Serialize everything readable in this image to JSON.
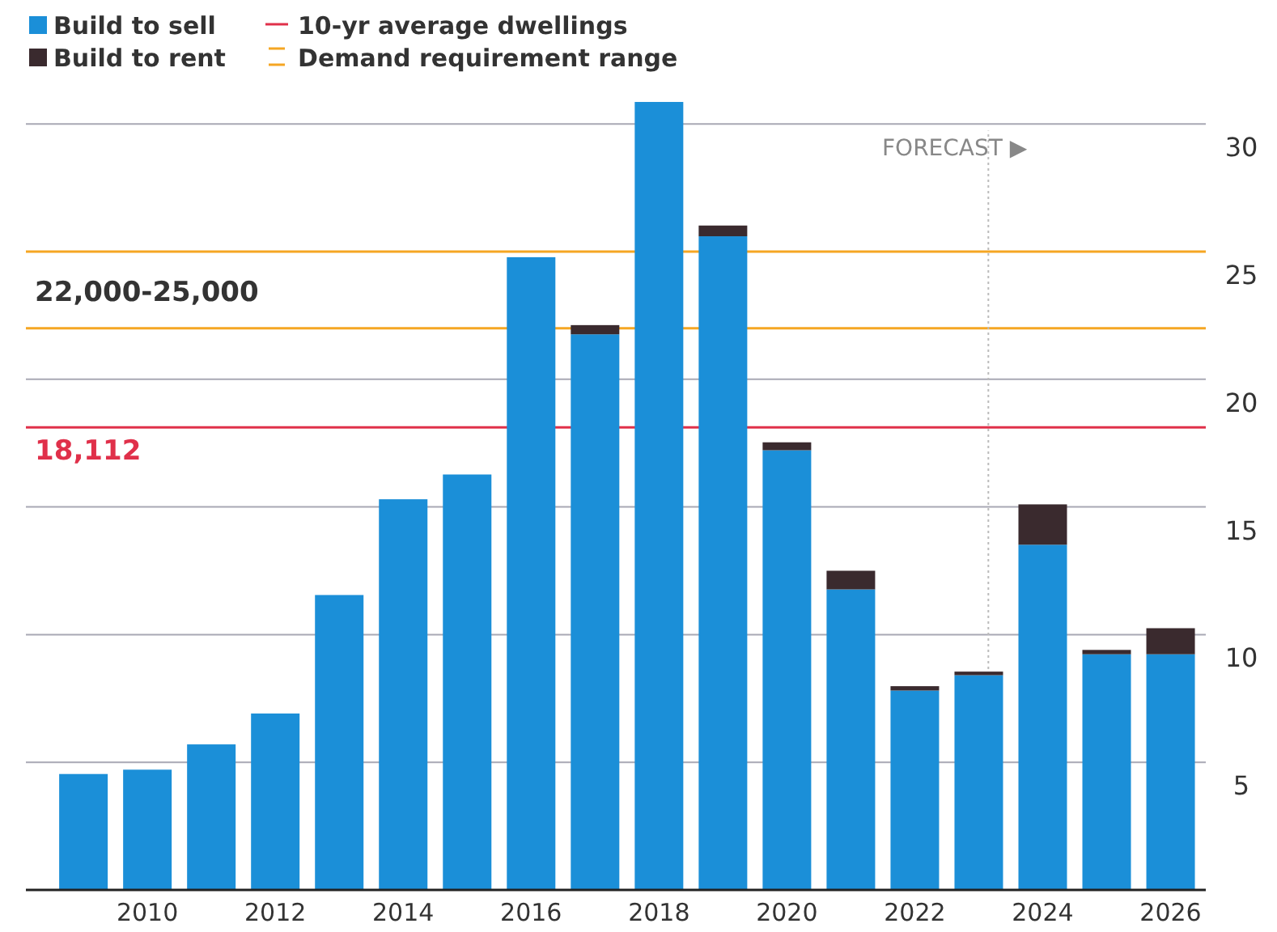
{
  "chart_data": {
    "type": "bar",
    "stacked": true,
    "x": [
      2009,
      2010,
      2011,
      2012,
      2013,
      2014,
      2015,
      2016,
      2017,
      2018,
      2019,
      2020,
      2021,
      2022,
      2023,
      2024,
      2025,
      2026
    ],
    "series": [
      {
        "name": "Build to sell",
        "color": "#1b8fd8",
        "values": [
          4.54,
          4.71,
          5.7,
          6.91,
          11.55,
          15.3,
          16.27,
          24.78,
          21.76,
          30.86,
          25.6,
          17.22,
          11.77,
          7.81,
          8.41,
          13.52,
          9.23,
          9.23
        ]
      },
      {
        "name": "Build to rent",
        "color": "#3a2a2e",
        "values": [
          0,
          0,
          0,
          0,
          0,
          0,
          0,
          0,
          0.36,
          0,
          0.42,
          0.31,
          0.73,
          0.17,
          0.14,
          1.58,
          0.17,
          1.02
        ]
      }
    ],
    "xlim": [
      2008.1,
      2026.55
    ],
    "xticks": [
      2010,
      2012,
      2014,
      2016,
      2018,
      2020,
      2022,
      2024,
      2026
    ],
    "ylim": [
      0,
      31
    ],
    "yticks": [
      5,
      10,
      15,
      20,
      25,
      30
    ],
    "grid": "y",
    "legend": "top left",
    "ref_lines": [
      {
        "axis": "y",
        "value": 18.112,
        "label": "10-yr average dwellings",
        "color": "#e0304a"
      },
      {
        "axis": "y",
        "value": 22,
        "label": "Demand requirement range",
        "color": "#f5a623"
      },
      {
        "axis": "y",
        "value": 25,
        "color": "#f5a623"
      },
      {
        "axis": "x",
        "value": 2023.15,
        "label": "FORECAST ▶",
        "color": "#bbbbbb",
        "line_style": "dotted"
      }
    ],
    "annotations": [
      {
        "text": "18,112",
        "x": 2009,
        "y": 18.112
      },
      "22,000-25,000"
    ]
  }
}
